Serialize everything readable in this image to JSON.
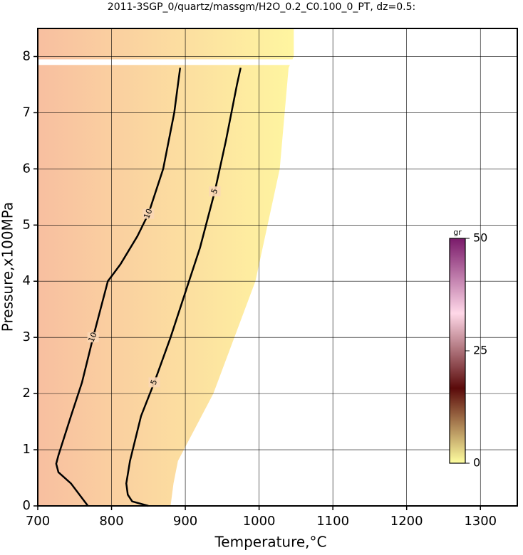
{
  "chart_data": {
    "type": "contour",
    "title": "2011-3SGP_0/quartz/massgm/H2O_0.2_C0.100_0_PT, dz=0.5:",
    "x_label": "Temperature,°C",
    "y_label": "Pressure,x100MPa",
    "xlim": [
      700,
      1350
    ],
    "xticks": [
      700,
      800,
      900,
      1000,
      1100,
      1200,
      1300
    ],
    "ylim": [
      0,
      8.5
    ],
    "yticks": [
      0,
      1,
      2,
      3,
      4,
      5,
      6,
      7,
      8
    ],
    "grid": true,
    "field": {
      "x": [
        700,
        880,
        884,
        890,
        938,
        995,
        1028,
        1040,
        1047,
        1047,
        700
      ],
      "y": [
        0,
        0,
        0.4,
        0.8,
        2,
        4,
        6,
        7.8,
        8,
        8.5,
        8.5
      ],
      "colors": [
        "#f8bfa0",
        "#fff7a0"
      ]
    },
    "contours": [
      {
        "level": 10,
        "color": "#000000",
        "x": [
          768,
          745,
          728,
          725,
          728,
          745,
          760,
          775,
          785,
          795,
          812,
          835,
          850,
          870,
          885,
          893
        ],
        "y": [
          0,
          0.4,
          0.6,
          0.75,
          0.9,
          1.6,
          2.2,
          3,
          3.5,
          4,
          4.3,
          4.8,
          5.2,
          6,
          7,
          7.8
        ]
      },
      {
        "level": 5,
        "color": "#000000",
        "x": [
          850,
          828,
          822,
          820,
          825,
          840,
          858,
          880,
          900,
          920,
          940,
          955,
          970,
          975
        ],
        "y": [
          0,
          0.08,
          0.2,
          0.4,
          0.8,
          1.6,
          2.2,
          3,
          3.8,
          4.6,
          5.6,
          6.5,
          7.5,
          7.8
        ]
      }
    ],
    "colorbar": {
      "label": "gr",
      "clim": [
        0,
        50
      ],
      "ticks": [
        0,
        25,
        50
      ],
      "colors": [
        "#ffffa0",
        "#5a0a0a",
        "#ffd8e8",
        "#7a1a6a"
      ]
    }
  }
}
